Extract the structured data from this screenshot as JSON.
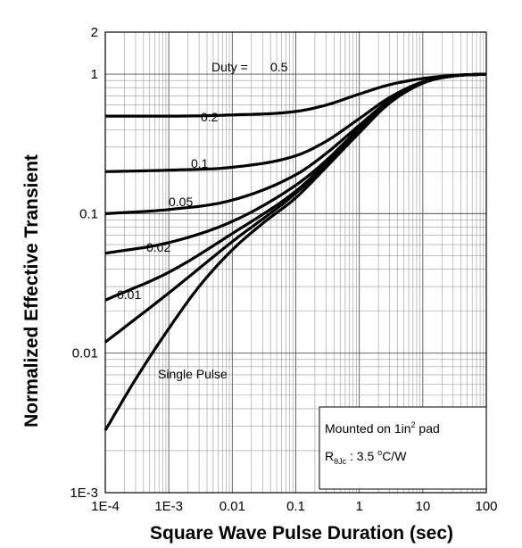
{
  "chart_data": {
    "type": "line",
    "xlabel": "Square Wave Pulse Duration (sec)",
    "ylabel": "Normalized Effective Transient",
    "x_scale": "log",
    "y_scale": "log",
    "xlim": [
      0.0001,
      100
    ],
    "ylim": [
      0.001,
      2
    ],
    "x_ticks": [
      "1E-4",
      "1E-3",
      "0.01",
      "0.1",
      "1",
      "10",
      "100"
    ],
    "y_ticks": [
      "1E-3",
      "0.01",
      "0.1",
      "1",
      "2"
    ],
    "grid": true,
    "legend_title": "Duty =",
    "series": [
      {
        "name": "0.5",
        "x": [
          0.0001,
          0.001,
          0.01,
          0.1,
          0.3,
          1,
          3,
          10,
          30,
          100
        ],
        "y": [
          0.5,
          0.5,
          0.51,
          0.54,
          0.6,
          0.72,
          0.84,
          0.93,
          0.98,
          1.0
        ]
      },
      {
        "name": "0.2",
        "x": [
          0.0001,
          0.001,
          0.01,
          0.1,
          0.3,
          1,
          3,
          10,
          30,
          100
        ],
        "y": [
          0.2,
          0.205,
          0.215,
          0.26,
          0.33,
          0.48,
          0.68,
          0.88,
          0.97,
          1.0
        ]
      },
      {
        "name": "0.1",
        "x": [
          0.0001,
          0.001,
          0.01,
          0.1,
          0.3,
          1,
          3,
          10,
          30,
          100
        ],
        "y": [
          0.1,
          0.107,
          0.125,
          0.19,
          0.27,
          0.43,
          0.65,
          0.87,
          0.97,
          1.0
        ]
      },
      {
        "name": "0.05",
        "x": [
          0.0001,
          0.001,
          0.01,
          0.1,
          0.3,
          1,
          3,
          10,
          30,
          100
        ],
        "y": [
          0.052,
          0.062,
          0.088,
          0.16,
          0.24,
          0.41,
          0.64,
          0.87,
          0.97,
          1.0
        ]
      },
      {
        "name": "0.02",
        "x": [
          0.0001,
          0.001,
          0.01,
          0.1,
          0.3,
          1,
          3,
          10,
          30,
          100
        ],
        "y": [
          0.024,
          0.038,
          0.072,
          0.145,
          0.23,
          0.4,
          0.63,
          0.87,
          0.97,
          1.0
        ]
      },
      {
        "name": "0.01",
        "x": [
          0.0001,
          0.001,
          0.01,
          0.1,
          0.3,
          1,
          3,
          10,
          30,
          100
        ],
        "y": [
          0.012,
          0.027,
          0.063,
          0.14,
          0.225,
          0.39,
          0.63,
          0.87,
          0.97,
          1.0
        ]
      },
      {
        "name": "Single Pulse",
        "x": [
          0.0001,
          0.0003,
          0.001,
          0.003,
          0.01,
          0.03,
          0.1,
          0.3,
          1,
          3,
          10,
          30,
          100
        ],
        "y": [
          0.0028,
          0.0065,
          0.015,
          0.03,
          0.055,
          0.085,
          0.13,
          0.215,
          0.38,
          0.62,
          0.86,
          0.97,
          1.0
        ]
      }
    ],
    "note": {
      "line1_prefix": "Mounted on 1in",
      "line1_sup": "2",
      "line1_suffix": " pad",
      "line2_r": "R",
      "line2_sub": "θJc",
      "line2_value": " : 3.5 ",
      "line2_deg": "o",
      "line2_unit": "C/W"
    }
  }
}
